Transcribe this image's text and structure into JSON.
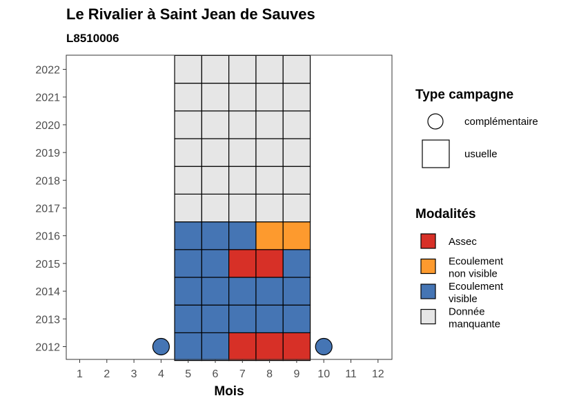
{
  "title": "Le Rivalier à Saint Jean de Sauves",
  "subtitle": "L8510006",
  "chart_data": {
    "type": "heatmap",
    "title": "Le Rivalier à Saint Jean de Sauves",
    "subtitle": "L8510006",
    "xlabel": "Mois",
    "ylabel": "",
    "x_ticks": [
      "1",
      "2",
      "3",
      "4",
      "5",
      "6",
      "7",
      "8",
      "9",
      "10",
      "11",
      "12"
    ],
    "y_ticks": [
      "2012",
      "2013",
      "2014",
      "2015",
      "2016",
      "2017",
      "2018",
      "2019",
      "2020",
      "2021",
      "2022"
    ],
    "xlim": [
      1,
      12
    ],
    "ylim": [
      2012,
      2022
    ],
    "grid": false,
    "colors": {
      "Assec": "#d73027",
      "Ecoulement non visible": "#fd9a2e",
      "Ecoulement visible": "#4575b4",
      "Donnée manquante": "#e6e6e6"
    },
    "legend_type": {
      "title": "Type campagne",
      "placement": "right",
      "items": [
        {
          "label": "complémentaire",
          "shape": "circle"
        },
        {
          "label": "usuelle",
          "shape": "square"
        }
      ]
    },
    "legend_modalites": {
      "title": "Modalités",
      "placement": "right",
      "items": [
        {
          "label": "Assec",
          "lines": [
            "Assec"
          ],
          "color": "#d73027"
        },
        {
          "label": "Ecoulement non visible",
          "lines": [
            "Ecoulement",
            "non visible"
          ],
          "color": "#fd9a2e"
        },
        {
          "label": "Ecoulement visible",
          "lines": [
            "Ecoulement",
            "visible"
          ],
          "color": "#4575b4"
        },
        {
          "label": "Donnée manquante",
          "lines": [
            "Donnée",
            "manquante"
          ],
          "color": "#e6e6e6"
        }
      ]
    },
    "points": [
      {
        "year": 2012,
        "month": 4,
        "type": "complémentaire",
        "modalite": "Ecoulement visible"
      },
      {
        "year": 2012,
        "month": 5,
        "type": "usuelle",
        "modalite": "Ecoulement visible"
      },
      {
        "year": 2012,
        "month": 6,
        "type": "usuelle",
        "modalite": "Ecoulement visible"
      },
      {
        "year": 2012,
        "month": 7,
        "type": "usuelle",
        "modalite": "Assec"
      },
      {
        "year": 2012,
        "month": 8,
        "type": "usuelle",
        "modalite": "Assec"
      },
      {
        "year": 2012,
        "month": 9,
        "type": "usuelle",
        "modalite": "Assec"
      },
      {
        "year": 2012,
        "month": 10,
        "type": "complémentaire",
        "modalite": "Ecoulement visible"
      },
      {
        "year": 2013,
        "month": 5,
        "type": "usuelle",
        "modalite": "Ecoulement visible"
      },
      {
        "year": 2013,
        "month": 6,
        "type": "usuelle",
        "modalite": "Ecoulement visible"
      },
      {
        "year": 2013,
        "month": 7,
        "type": "usuelle",
        "modalite": "Ecoulement visible"
      },
      {
        "year": 2013,
        "month": 8,
        "type": "usuelle",
        "modalite": "Ecoulement visible"
      },
      {
        "year": 2013,
        "month": 9,
        "type": "usuelle",
        "modalite": "Ecoulement visible"
      },
      {
        "year": 2014,
        "month": 5,
        "type": "usuelle",
        "modalite": "Ecoulement visible"
      },
      {
        "year": 2014,
        "month": 6,
        "type": "usuelle",
        "modalite": "Ecoulement visible"
      },
      {
        "year": 2014,
        "month": 7,
        "type": "usuelle",
        "modalite": "Ecoulement visible"
      },
      {
        "year": 2014,
        "month": 8,
        "type": "usuelle",
        "modalite": "Ecoulement visible"
      },
      {
        "year": 2014,
        "month": 9,
        "type": "usuelle",
        "modalite": "Ecoulement visible"
      },
      {
        "year": 2015,
        "month": 5,
        "type": "usuelle",
        "modalite": "Ecoulement visible"
      },
      {
        "year": 2015,
        "month": 6,
        "type": "usuelle",
        "modalite": "Ecoulement visible"
      },
      {
        "year": 2015,
        "month": 7,
        "type": "usuelle",
        "modalite": "Assec"
      },
      {
        "year": 2015,
        "month": 8,
        "type": "usuelle",
        "modalite": "Assec"
      },
      {
        "year": 2015,
        "month": 9,
        "type": "usuelle",
        "modalite": "Ecoulement visible"
      },
      {
        "year": 2016,
        "month": 5,
        "type": "usuelle",
        "modalite": "Ecoulement visible"
      },
      {
        "year": 2016,
        "month": 6,
        "type": "usuelle",
        "modalite": "Ecoulement visible"
      },
      {
        "year": 2016,
        "month": 7,
        "type": "usuelle",
        "modalite": "Ecoulement visible"
      },
      {
        "year": 2016,
        "month": 8,
        "type": "usuelle",
        "modalite": "Ecoulement non visible"
      },
      {
        "year": 2016,
        "month": 9,
        "type": "usuelle",
        "modalite": "Ecoulement non visible"
      },
      {
        "year": 2017,
        "month": 5,
        "type": "usuelle",
        "modalite": "Donnée manquante"
      },
      {
        "year": 2017,
        "month": 6,
        "type": "usuelle",
        "modalite": "Donnée manquante"
      },
      {
        "year": 2017,
        "month": 7,
        "type": "usuelle",
        "modalite": "Donnée manquante"
      },
      {
        "year": 2017,
        "month": 8,
        "type": "usuelle",
        "modalite": "Donnée manquante"
      },
      {
        "year": 2017,
        "month": 9,
        "type": "usuelle",
        "modalite": "Donnée manquante"
      },
      {
        "year": 2018,
        "month": 5,
        "type": "usuelle",
        "modalite": "Donnée manquante"
      },
      {
        "year": 2018,
        "month": 6,
        "type": "usuelle",
        "modalite": "Donnée manquante"
      },
      {
        "year": 2018,
        "month": 7,
        "type": "usuelle",
        "modalite": "Donnée manquante"
      },
      {
        "year": 2018,
        "month": 8,
        "type": "usuelle",
        "modalite": "Donnée manquante"
      },
      {
        "year": 2018,
        "month": 9,
        "type": "usuelle",
        "modalite": "Donnée manquante"
      },
      {
        "year": 2019,
        "month": 5,
        "type": "usuelle",
        "modalite": "Donnée manquante"
      },
      {
        "year": 2019,
        "month": 6,
        "type": "usuelle",
        "modalite": "Donnée manquante"
      },
      {
        "year": 2019,
        "month": 7,
        "type": "usuelle",
        "modalite": "Donnée manquante"
      },
      {
        "year": 2019,
        "month": 8,
        "type": "usuelle",
        "modalite": "Donnée manquante"
      },
      {
        "year": 2019,
        "month": 9,
        "type": "usuelle",
        "modalite": "Donnée manquante"
      },
      {
        "year": 2020,
        "month": 5,
        "type": "usuelle",
        "modalite": "Donnée manquante"
      },
      {
        "year": 2020,
        "month": 6,
        "type": "usuelle",
        "modalite": "Donnée manquante"
      },
      {
        "year": 2020,
        "month": 7,
        "type": "usuelle",
        "modalite": "Donnée manquante"
      },
      {
        "year": 2020,
        "month": 8,
        "type": "usuelle",
        "modalite": "Donnée manquante"
      },
      {
        "year": 2020,
        "month": 9,
        "type": "usuelle",
        "modalite": "Donnée manquante"
      },
      {
        "year": 2021,
        "month": 5,
        "type": "usuelle",
        "modalite": "Donnée manquante"
      },
      {
        "year": 2021,
        "month": 6,
        "type": "usuelle",
        "modalite": "Donnée manquante"
      },
      {
        "year": 2021,
        "month": 7,
        "type": "usuelle",
        "modalite": "Donnée manquante"
      },
      {
        "year": 2021,
        "month": 8,
        "type": "usuelle",
        "modalite": "Donnée manquante"
      },
      {
        "year": 2021,
        "month": 9,
        "type": "usuelle",
        "modalite": "Donnée manquante"
      },
      {
        "year": 2022,
        "month": 5,
        "type": "usuelle",
        "modalite": "Donnée manquante"
      },
      {
        "year": 2022,
        "month": 6,
        "type": "usuelle",
        "modalite": "Donnée manquante"
      },
      {
        "year": 2022,
        "month": 7,
        "type": "usuelle",
        "modalite": "Donnée manquante"
      },
      {
        "year": 2022,
        "month": 8,
        "type": "usuelle",
        "modalite": "Donnée manquante"
      },
      {
        "year": 2022,
        "month": 9,
        "type": "usuelle",
        "modalite": "Donnée manquante"
      }
    ]
  }
}
